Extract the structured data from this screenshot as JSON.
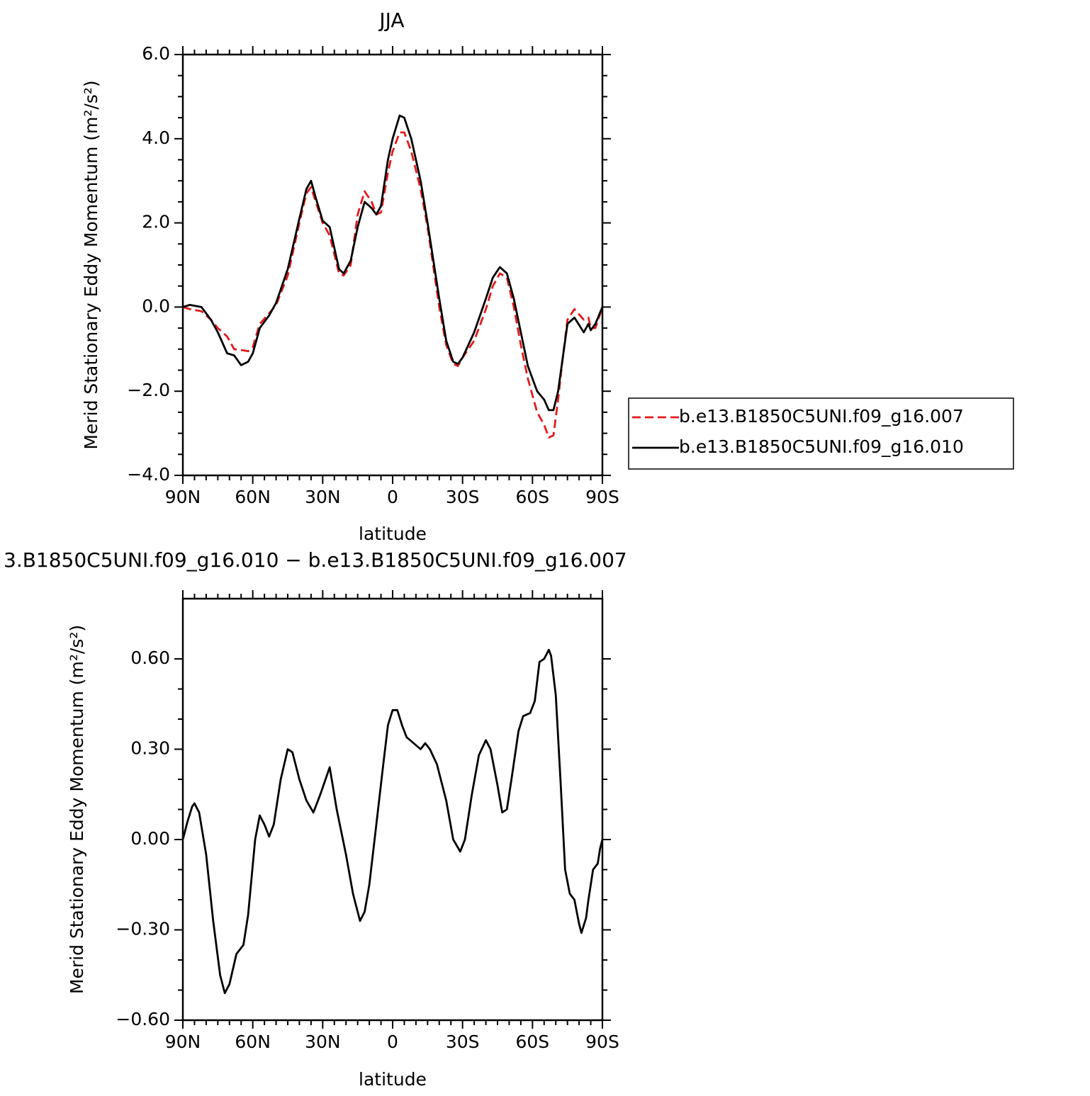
{
  "chart_data": [
    {
      "type": "line",
      "title": "JJA",
      "xlabel": "latitude",
      "ylabel": "Merid Stationary Eddy Momentum (m²/s²)",
      "xlim": [
        90,
        -90
      ],
      "ylim": [
        -4,
        6
      ],
      "xticks": [
        {
          "value": 90,
          "label": "90N"
        },
        {
          "value": 60,
          "label": "60N"
        },
        {
          "value": 30,
          "label": "30N"
        },
        0,
        {
          "value": -30,
          "label": "30S"
        },
        {
          "value": -60,
          "label": "60S"
        },
        {
          "value": -90,
          "label": "90S"
        }
      ],
      "yticks": [
        {
          "value": -4,
          "label": "−4.0"
        },
        {
          "value": -2,
          "label": "−2.0"
        },
        {
          "value": 0,
          "label": "0.0"
        },
        {
          "value": 2,
          "label": "2.0"
        },
        {
          "value": 4,
          "label": "4.0"
        },
        {
          "value": 6,
          "label": "6.0"
        }
      ],
      "legend": "right",
      "x": [
        90,
        87,
        82,
        78,
        75,
        71,
        68,
        65,
        62,
        60,
        57,
        53,
        50,
        45,
        40,
        37,
        35,
        33,
        30,
        27,
        23,
        21,
        18,
        15,
        12,
        9,
        7,
        5,
        2,
        0,
        -3,
        -5,
        -8,
        -12,
        -15,
        -20,
        -23,
        -26,
        -28,
        -30,
        -35,
        -40,
        -43,
        -46,
        -49,
        -52,
        -55,
        -58,
        -62,
        -65,
        -67,
        -69,
        -71,
        -73,
        -75,
        -78,
        -82,
        -84,
        -85,
        -87,
        -90
      ],
      "series": [
        {
          "name": "b.e13.B1850C5UNI.f09_g16.007",
          "color": "#e41a1c",
          "linestyle": "dashed",
          "values": [
            0,
            -0.05,
            -0.1,
            -0.3,
            -0.5,
            -0.7,
            -1.0,
            -1.02,
            -1.05,
            -0.95,
            -0.4,
            -0.15,
            0.05,
            0.75,
            2.0,
            2.7,
            2.85,
            2.5,
            2.0,
            1.7,
            0.8,
            0.75,
            1.0,
            2.2,
            2.75,
            2.5,
            2.2,
            2.25,
            3.2,
            3.7,
            4.15,
            4.15,
            3.7,
            2.8,
            1.9,
            0.0,
            -0.9,
            -1.35,
            -1.4,
            -1.2,
            -0.8,
            -0.05,
            0.5,
            0.8,
            0.7,
            0.0,
            -0.9,
            -1.7,
            -2.5,
            -2.8,
            -3.1,
            -3.05,
            -2.2,
            -1.2,
            -0.3,
            -0.05,
            -0.3,
            -0.25,
            -0.5,
            -0.5,
            0
          ]
        },
        {
          "name": "b.e13.B1850C5UNI.f09_g16.010",
          "color": "#000000",
          "linestyle": "solid",
          "values": [
            0,
            0.05,
            0,
            -0.3,
            -0.6,
            -1.1,
            -1.15,
            -1.38,
            -1.3,
            -1.1,
            -0.5,
            -0.2,
            0.1,
            0.9,
            2.1,
            2.8,
            3.0,
            2.6,
            2.05,
            1.9,
            0.9,
            0.8,
            1.1,
            1.9,
            2.5,
            2.35,
            2.2,
            2.4,
            3.5,
            4.0,
            4.55,
            4.5,
            4.0,
            3.0,
            2.0,
            0.2,
            -0.8,
            -1.3,
            -1.35,
            -1.2,
            -0.6,
            0.2,
            0.7,
            0.95,
            0.8,
            0.2,
            -0.6,
            -1.4,
            -2.0,
            -2.2,
            -2.45,
            -2.45,
            -2.0,
            -1.2,
            -0.4,
            -0.25,
            -0.6,
            -0.4,
            -0.55,
            -0.4,
            0
          ]
        }
      ]
    },
    {
      "type": "line",
      "title": "3.B1850C5UNI.f09_g16.010 − b.e13.B1850C5UNI.f09_g16.007",
      "xlabel": "latitude",
      "ylabel": "Merid Stationary Eddy Momentum (m²/s²)",
      "xlim": [
        90,
        -90
      ],
      "ylim": [
        -0.6,
        0.8
      ],
      "xticks": [
        {
          "value": 90,
          "label": "90N"
        },
        {
          "value": 60,
          "label": "60N"
        },
        {
          "value": 30,
          "label": "30N"
        },
        0,
        {
          "value": -30,
          "label": "30S"
        },
        {
          "value": -60,
          "label": "60S"
        },
        {
          "value": -90,
          "label": "90S"
        }
      ],
      "yticks": [
        {
          "value": -0.6,
          "label": "−0.60"
        },
        {
          "value": -0.3,
          "label": "−0.30"
        },
        {
          "value": 0,
          "label": "0.00"
        },
        {
          "value": 0.3,
          "label": "0.30"
        },
        {
          "value": 0.6,
          "label": "0.60"
        }
      ],
      "x": [
        90,
        88,
        86,
        85,
        83,
        80,
        77,
        74,
        72,
        70,
        67,
        64,
        62,
        59,
        57,
        55,
        53,
        51,
        48,
        45,
        43,
        40,
        37,
        34,
        31,
        27,
        24,
        20,
        17,
        14,
        12,
        10,
        7,
        4,
        2,
        0,
        -2,
        -4,
        -6,
        -9,
        -12,
        -14,
        -16,
        -19,
        -23,
        -26,
        -29,
        -31,
        -34,
        -37,
        -40,
        -42,
        -45,
        -47,
        -49,
        -51,
        -54,
        -56,
        -59,
        -61,
        -63,
        -65,
        -67,
        -68,
        -70,
        -72,
        -74,
        -76,
        -78,
        -80,
        -81,
        -83,
        -84,
        -86,
        -88,
        -89,
        -90
      ],
      "series": [
        {
          "color": "#000000",
          "linestyle": "solid",
          "values": [
            0.0,
            0.06,
            0.11,
            0.12,
            0.09,
            -0.05,
            -0.27,
            -0.45,
            -0.51,
            -0.48,
            -0.38,
            -0.35,
            -0.25,
            0.0,
            0.08,
            0.05,
            0.01,
            0.05,
            0.2,
            0.3,
            0.29,
            0.2,
            0.13,
            0.09,
            0.15,
            0.24,
            0.1,
            -0.05,
            -0.18,
            -0.27,
            -0.24,
            -0.15,
            0.05,
            0.25,
            0.38,
            0.43,
            0.43,
            0.38,
            0.34,
            0.32,
            0.3,
            0.32,
            0.3,
            0.25,
            0.13,
            0.0,
            -0.04,
            0.0,
            0.15,
            0.28,
            0.33,
            0.3,
            0.18,
            0.09,
            0.1,
            0.2,
            0.36,
            0.41,
            0.42,
            0.46,
            0.59,
            0.6,
            0.63,
            0.61,
            0.48,
            0.2,
            -0.1,
            -0.18,
            -0.2,
            -0.28,
            -0.31,
            -0.26,
            -0.2,
            -0.1,
            -0.08,
            -0.03,
            0.0
          ]
        }
      ]
    }
  ]
}
